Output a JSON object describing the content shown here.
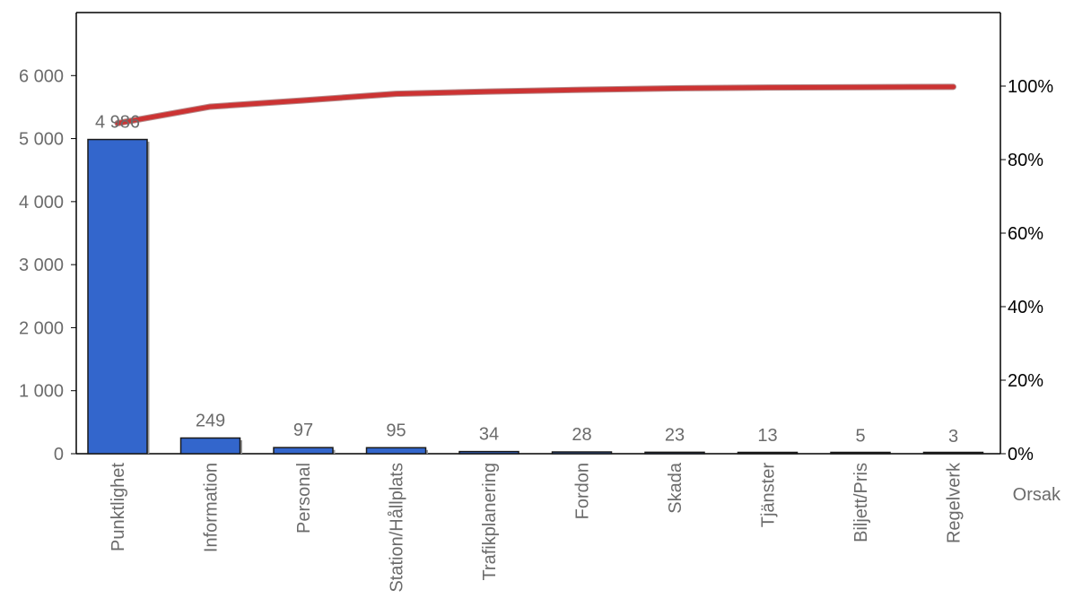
{
  "chart_data": {
    "type": "bar",
    "categories": [
      "Punktlighet",
      "Information",
      "Personal",
      "Station/Hållplats",
      "Trafikplanering",
      "Fordon",
      "Skada",
      "Tjänster",
      "Biljett/Pris",
      "Regelverk"
    ],
    "values": [
      4986,
      249,
      97,
      95,
      34,
      28,
      23,
      13,
      5,
      3
    ],
    "data_labels": [
      "4 986",
      "249",
      "97",
      "95",
      "34",
      "28",
      "23",
      "13",
      "5",
      "3"
    ],
    "cumulative_percent": [
      89.9,
      94.4,
      96.1,
      97.9,
      98.5,
      99.0,
      99.4,
      99.6,
      99.7,
      99.8
    ],
    "xlabel": "Orsak",
    "ylabel": "",
    "ylim": [
      0,
      7000
    ],
    "y_ticks": [
      0,
      1000,
      2000,
      3000,
      4000,
      5000,
      6000
    ],
    "y_tick_labels": [
      "0",
      "1 000",
      "2 000",
      "3 000",
      "4 000",
      "5 000",
      "6 000"
    ],
    "y2lim": [
      0,
      120
    ],
    "y2_ticks": [
      0,
      20,
      40,
      60,
      80,
      100
    ],
    "y2_tick_labels": [
      "0%",
      "20%",
      "40%",
      "60%",
      "80%",
      "100%"
    ],
    "grid": false,
    "legend": "none",
    "colors": {
      "bar": "#3366cc",
      "bar_outline": "#1a1a1a",
      "line": "#cc3333",
      "text": "#6b6b6b"
    }
  }
}
